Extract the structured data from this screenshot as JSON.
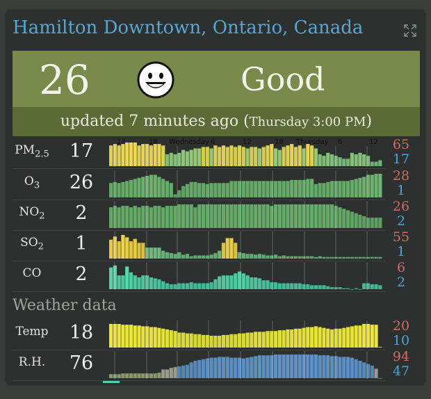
{
  "title": "Hamilton Downtown, Ontario, Canada",
  "icons": {
    "expand": "expand-icon",
    "face": "smiley-face-icon"
  },
  "aqi": {
    "value": "26",
    "label": "Good",
    "updated": "updated 7 minutes ago (",
    "updated_time": "Thursday 3:00 PM",
    "updated_close": ")",
    "color": "#7a8a4a"
  },
  "time_axis": [
    "12",
    "18",
    "Wednesday",
    "6",
    "12",
    "18",
    "Thursday",
    "6",
    "12"
  ],
  "pollutants": [
    {
      "id": "pm25",
      "name": "PM",
      "sub": "2.5",
      "value": "17",
      "max": "65",
      "min": "17",
      "series": [
        14,
        15,
        14,
        15,
        16,
        16,
        16,
        14,
        15,
        15,
        14,
        15,
        15,
        14,
        8,
        9,
        8,
        9,
        11,
        10,
        11,
        12,
        12,
        13,
        13,
        12,
        14,
        13,
        14,
        13,
        14,
        13,
        14,
        13,
        12,
        13,
        13,
        12,
        13,
        14,
        15,
        12,
        11,
        13,
        14,
        15,
        13,
        14,
        12,
        15,
        14,
        12,
        8,
        7,
        9,
        8,
        7,
        6,
        5,
        5,
        9,
        8,
        9,
        8,
        7,
        3,
        3,
        4
      ]
    },
    {
      "id": "o3",
      "name": "O",
      "sub": "3",
      "value": "26",
      "max": "28",
      "min": "1",
      "series": [
        14,
        15,
        14,
        15,
        16,
        17,
        18,
        19,
        20,
        21,
        22,
        22,
        20,
        18,
        16,
        14,
        3,
        7,
        11,
        13,
        15,
        15,
        14,
        14,
        13,
        14,
        14,
        14,
        14,
        14,
        16,
        16,
        16,
        16,
        16,
        16,
        16,
        16,
        16,
        16,
        16,
        16,
        16,
        16,
        16,
        17,
        17,
        17,
        17,
        18,
        18,
        13,
        14,
        14,
        15,
        16,
        16,
        16,
        16,
        16,
        17,
        18,
        19,
        20,
        22,
        22,
        23,
        23
      ]
    },
    {
      "id": "no2",
      "name": "NO",
      "sub": "2",
      "value": "2",
      "max": "26",
      "min": "2",
      "series": [
        14,
        15,
        14,
        15,
        15,
        14,
        15,
        14,
        15,
        15,
        14,
        15,
        15,
        14,
        15,
        15,
        15,
        16,
        16,
        16,
        16,
        14,
        16,
        16,
        16,
        16,
        16,
        16,
        16,
        16,
        16,
        16,
        16,
        16,
        16,
        16,
        16,
        16,
        16,
        16,
        15,
        16,
        16,
        16,
        16,
        16,
        16,
        16,
        16,
        16,
        16,
        16,
        16,
        16,
        16,
        16,
        15,
        14,
        13,
        12,
        11,
        10,
        9,
        8,
        7,
        7,
        7,
        7
      ]
    },
    {
      "id": "so2",
      "name": "SO",
      "sub": "2",
      "value": "1",
      "max": "55",
      "min": "1",
      "series": [
        24,
        28,
        22,
        30,
        27,
        22,
        25,
        20,
        20,
        14,
        14,
        14,
        14,
        10,
        8,
        7,
        6,
        8,
        5,
        6,
        3,
        4,
        4,
        4,
        4,
        5,
        7,
        10,
        20,
        26,
        26,
        20,
        8,
        7,
        6,
        6,
        5,
        6,
        5,
        4,
        4,
        5,
        3,
        4,
        3,
        3,
        3,
        3,
        3,
        3,
        3,
        2,
        3,
        2,
        2,
        2,
        2,
        2,
        2,
        2,
        2,
        2,
        2,
        2,
        2,
        2,
        2,
        2
      ]
    },
    {
      "id": "co",
      "name": "CO",
      "sub": "",
      "value": "2",
      "max": "6",
      "min": "2",
      "series": [
        22,
        24,
        14,
        14,
        23,
        17,
        14,
        12,
        14,
        14,
        12,
        11,
        10,
        8,
        6,
        5,
        5,
        6,
        6,
        6,
        7,
        6,
        6,
        6,
        6,
        7,
        10,
        13,
        14,
        14,
        14,
        16,
        18,
        16,
        14,
        12,
        12,
        11,
        9,
        9,
        7,
        7,
        6,
        6,
        6,
        6,
        6,
        6,
        5,
        5,
        4,
        4,
        4,
        4,
        3,
        2,
        2,
        2,
        1,
        1,
        0,
        1,
        0,
        6,
        6,
        5,
        5,
        4
      ]
    }
  ],
  "weather": {
    "heading": "Weather data",
    "rows": [
      {
        "id": "temp",
        "name": "Temp",
        "value": "18",
        "max": "20",
        "min": "10",
        "series": [
          30,
          30,
          30,
          29,
          29,
          29,
          28,
          28,
          27,
          27,
          26,
          26,
          25,
          24,
          23,
          22,
          21,
          19,
          19,
          18,
          18,
          17,
          17,
          16,
          16,
          15,
          15,
          15,
          16,
          16,
          17,
          17,
          18,
          18,
          19,
          19,
          20,
          20,
          20,
          21,
          21,
          21,
          22,
          22,
          23,
          23,
          24,
          24,
          25,
          26,
          26,
          27,
          26,
          25,
          24,
          23,
          24,
          24,
          25,
          26,
          27,
          28,
          28,
          30,
          30,
          29,
          29,
          1
        ]
      },
      {
        "id": "rh",
        "name": "R.H.",
        "value": "76",
        "max": "94",
        "min": "47",
        "series": [
          5,
          5,
          5,
          6,
          6,
          6,
          6,
          6,
          6,
          6,
          6,
          6,
          7,
          11,
          11,
          13,
          14,
          15,
          16,
          17,
          20,
          22,
          23,
          24,
          25,
          26,
          26,
          27,
          27,
          27,
          26,
          26,
          26,
          25,
          26,
          27,
          28,
          29,
          29,
          29,
          29,
          30,
          30,
          30,
          30,
          30,
          30,
          30,
          30,
          30,
          30,
          30,
          29,
          29,
          29,
          28,
          28,
          27,
          27,
          27,
          26,
          24,
          22,
          20,
          18,
          16,
          12,
          0
        ]
      }
    ]
  }
}
